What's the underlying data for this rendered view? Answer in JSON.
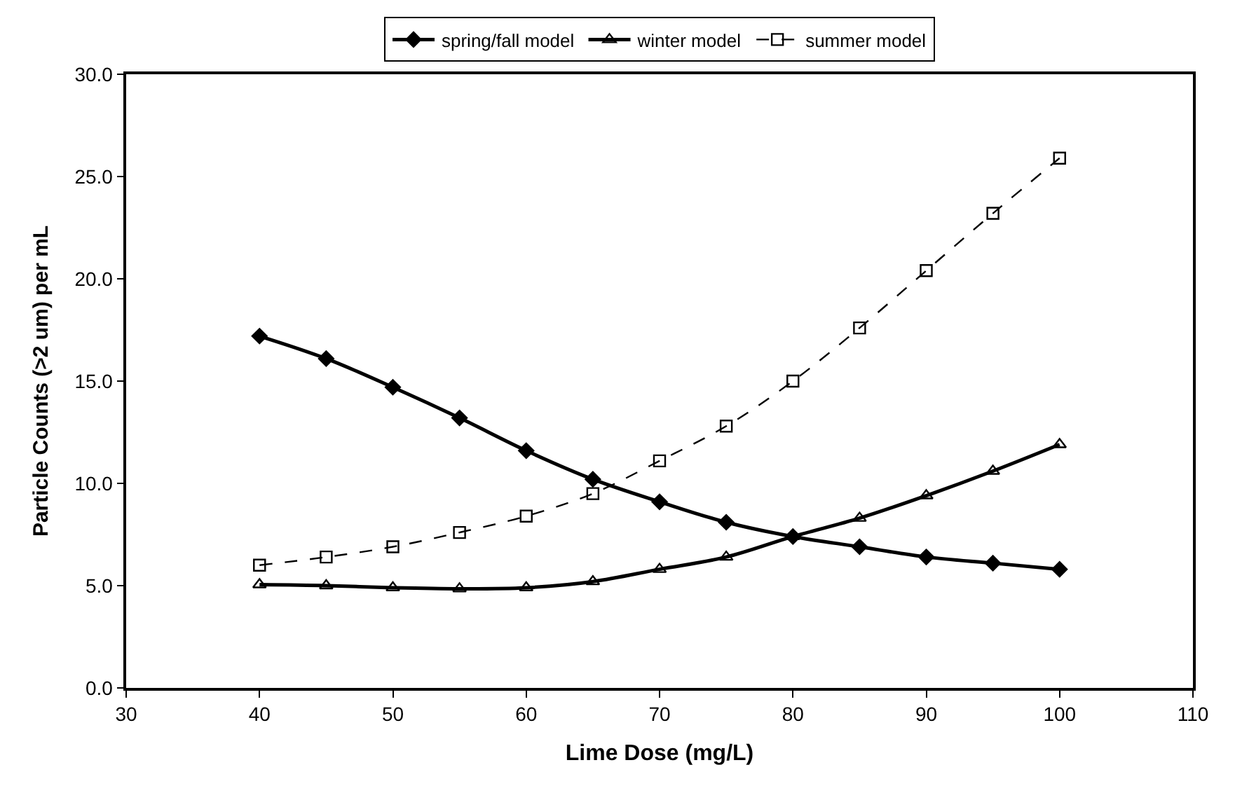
{
  "chart_data": {
    "type": "line",
    "xlabel": "Lime Dose (mg/L)",
    "ylabel": "Particle Counts (>2 um) per mL",
    "x": [
      40,
      45,
      50,
      55,
      60,
      65,
      70,
      75,
      80,
      85,
      90,
      95,
      100
    ],
    "series": [
      {
        "name": "spring/fall model",
        "color": "#000000",
        "marker": "diamond",
        "line_style": "solid",
        "values": [
          17.2,
          16.1,
          14.7,
          13.2,
          11.6,
          10.2,
          9.1,
          8.1,
          7.4,
          6.9,
          6.4,
          6.1,
          5.8
        ]
      },
      {
        "name": "winter model",
        "color": "#000000",
        "marker": "triangle",
        "line_style": "solid",
        "values": [
          5.05,
          5.0,
          4.9,
          4.85,
          4.9,
          5.2,
          5.8,
          6.4,
          7.4,
          8.3,
          9.4,
          10.6,
          11.9
        ]
      },
      {
        "name": "summer model",
        "color": "#000000",
        "marker": "square",
        "line_style": "dashed",
        "values": [
          6.0,
          6.4,
          6.9,
          7.6,
          8.4,
          9.5,
          11.1,
          12.8,
          15.0,
          17.6,
          20.4,
          23.2,
          25.9
        ]
      }
    ],
    "xlim": [
      30,
      110
    ],
    "xticks": [
      30,
      40,
      50,
      60,
      70,
      80,
      90,
      100,
      110
    ],
    "ylim": [
      0,
      30
    ],
    "yticks": [
      {
        "value": 0,
        "label": "0.0"
      },
      {
        "value": 5,
        "label": "5.0"
      },
      {
        "value": 10,
        "label": "10.0"
      },
      {
        "value": 15,
        "label": "15.0"
      },
      {
        "value": 20,
        "label": "20.0"
      },
      {
        "value": 25,
        "label": "25.0"
      },
      {
        "value": 30,
        "label": "30.0"
      }
    ],
    "legend": "top"
  }
}
